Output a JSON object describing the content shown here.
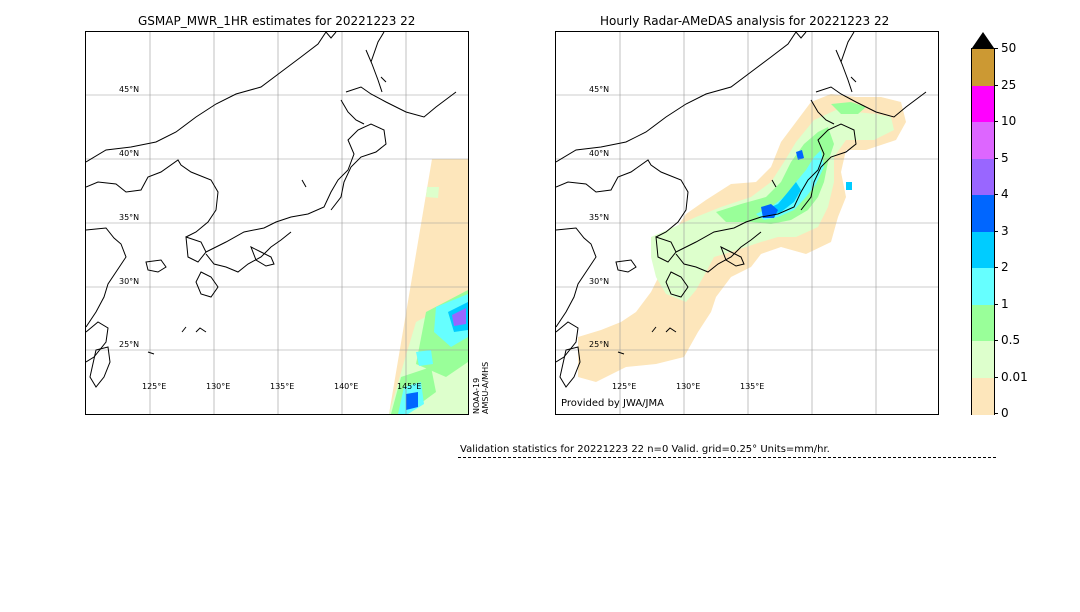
{
  "left_map": {
    "title": "GSMAP_MWR_1HR estimates for 20221223 22",
    "lat_labels": [
      "45°N",
      "40°N",
      "35°N",
      "30°N",
      "25°N"
    ],
    "lon_labels": [
      "125°E",
      "130°E",
      "135°E",
      "140°E",
      "145°E"
    ],
    "satellite_label_1": "NOAA-19",
    "satellite_label_2": "AMSU-A/MHS"
  },
  "right_map": {
    "title": "Hourly Radar-AMeDAS analysis for 20221223 22",
    "lat_labels": [
      "45°N",
      "40°N",
      "35°N",
      "30°N",
      "25°N"
    ],
    "lon_labels": [
      "125°E",
      "130°E",
      "135°E"
    ],
    "credit": "Provided by JWA/JMA"
  },
  "colorbar": {
    "labels": [
      "50",
      "25",
      "10",
      "5",
      "4",
      "3",
      "2",
      "1",
      "0.5",
      "0.01",
      "0"
    ],
    "colors": [
      "#cc9933",
      "#ff00ff",
      "#dd66ff",
      "#9966ff",
      "#0066ff",
      "#00ccff",
      "#66ffff",
      "#99ff99",
      "#ddffcc",
      "#fde6bb"
    ],
    "extend_color": "#000000"
  },
  "stats": {
    "text": "Validation statistics for 20221223 22  n=0 Valid. grid=0.25° Units=mm/hr."
  }
}
